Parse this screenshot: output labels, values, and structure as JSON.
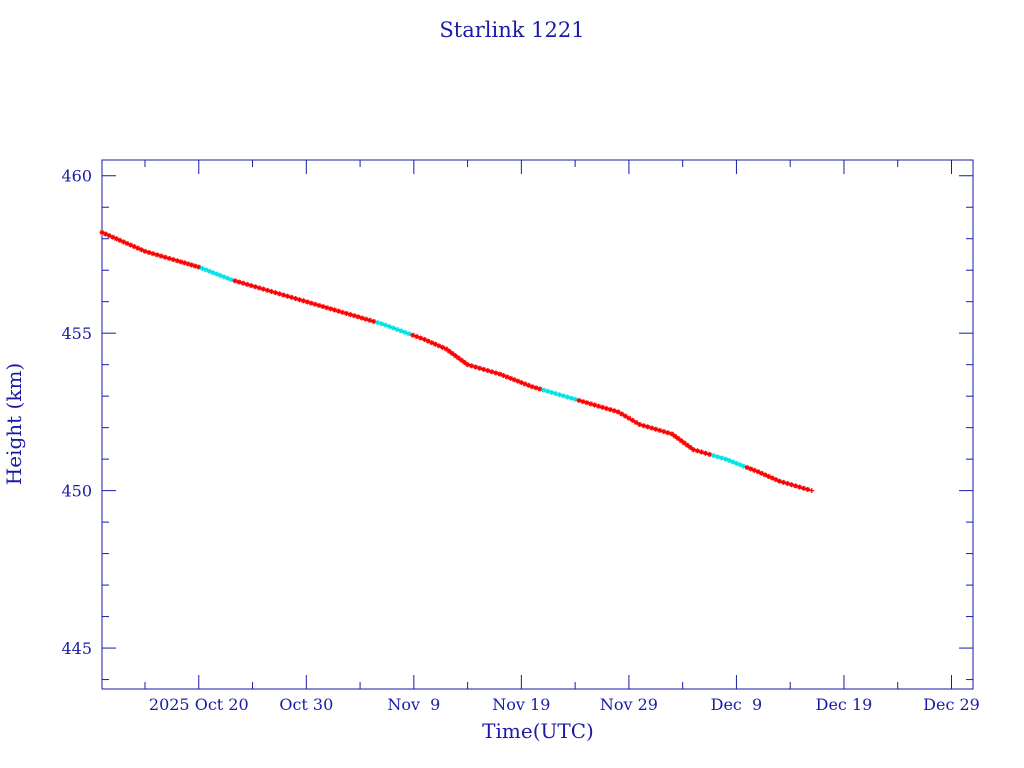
{
  "chart_data": {
    "type": "line",
    "title": "Starlink 1221",
    "xlabel": "Time(UTC)",
    "ylabel": "Height (km)",
    "ylim": [
      443.7,
      460.5
    ],
    "xlim": [
      "2025-10-11",
      "2025-12-31"
    ],
    "y_ticks": [
      445,
      450,
      455,
      460
    ],
    "x_ticks": [
      {
        "date": "2025-10-20",
        "label": "2025 Oct 20"
      },
      {
        "date": "2025-10-30",
        "label": "Oct 30"
      },
      {
        "date": "2025-11-09",
        "label": "Nov  9"
      },
      {
        "date": "2025-11-19",
        "label": "Nov 19"
      },
      {
        "date": "2025-11-29",
        "label": "Nov 29"
      },
      {
        "date": "2025-12-09",
        "label": "Dec  9"
      },
      {
        "date": "2025-12-19",
        "label": "Dec 19"
      },
      {
        "date": "2025-12-29",
        "label": "Dec 29"
      }
    ],
    "grid": false,
    "series": [
      {
        "color": "#000000",
        "marker_colors": [
          "#ff0000",
          "#00e5e5"
        ],
        "points": [
          {
            "x": "2025-10-11",
            "y": 458.2
          },
          {
            "x": "2025-10-13",
            "y": 457.9
          },
          {
            "x": "2025-10-15",
            "y": 457.6
          },
          {
            "x": "2025-10-18",
            "y": 457.3
          },
          {
            "x": "2025-10-20",
            "y": 457.1
          },
          {
            "x": "2025-10-23",
            "y": 456.7
          },
          {
            "x": "2025-10-26",
            "y": 456.4
          },
          {
            "x": "2025-10-29",
            "y": 456.1
          },
          {
            "x": "2025-11-02",
            "y": 455.7
          },
          {
            "x": "2025-11-06",
            "y": 455.3
          },
          {
            "x": "2025-11-10",
            "y": 454.8
          },
          {
            "x": "2025-11-12",
            "y": 454.5
          },
          {
            "x": "2025-11-14",
            "y": 454.0
          },
          {
            "x": "2025-11-17",
            "y": 453.7
          },
          {
            "x": "2025-11-20",
            "y": 453.3
          },
          {
            "x": "2025-11-24",
            "y": 452.9
          },
          {
            "x": "2025-11-28",
            "y": 452.5
          },
          {
            "x": "2025-11-30",
            "y": 452.1
          },
          {
            "x": "2025-12-03",
            "y": 451.8
          },
          {
            "x": "2025-12-05",
            "y": 451.3
          },
          {
            "x": "2025-12-08",
            "y": 451.0
          },
          {
            "x": "2025-12-11",
            "y": 450.6
          },
          {
            "x": "2025-12-13",
            "y": 450.3
          },
          {
            "x": "2025-12-16",
            "y": 450.0
          }
        ]
      }
    ]
  }
}
